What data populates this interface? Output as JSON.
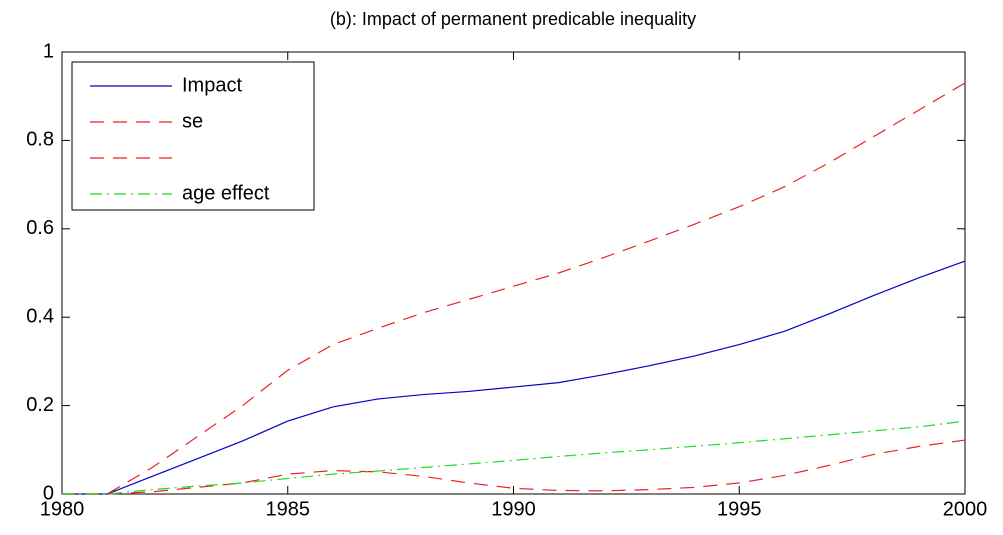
{
  "chart_data": {
    "type": "line",
    "title": "(b): Impact of permanent predicable inequality",
    "x": [
      1980,
      1981,
      1982,
      1983,
      1984,
      1985,
      1986,
      1987,
      1988,
      1989,
      1990,
      1991,
      1992,
      1993,
      1994,
      1995,
      1996,
      1997,
      1998,
      1999,
      2000
    ],
    "series": [
      {
        "name": "Impact",
        "color": "#0000cc",
        "style": "solid",
        "values": [
          0,
          0,
          0.04,
          0.08,
          0.12,
          0.165,
          0.197,
          0.215,
          0.225,
          0.232,
          0.242,
          0.252,
          0.27,
          0.29,
          0.312,
          0.338,
          0.368,
          0.408,
          0.45,
          0.49,
          0.527
        ]
      },
      {
        "name": "se",
        "color": "#ee2222",
        "style": "dashed",
        "values": [
          0,
          0,
          0.06,
          0.13,
          0.2,
          0.28,
          0.338,
          0.375,
          0.41,
          0.44,
          0.47,
          0.5,
          0.535,
          0.572,
          0.61,
          0.65,
          0.695,
          0.75,
          0.81,
          0.87,
          0.93
        ]
      },
      {
        "name": null,
        "color": "#ee2222",
        "style": "dashed",
        "values": [
          0,
          0,
          0.005,
          0.015,
          0.025,
          0.045,
          0.053,
          0.05,
          0.04,
          0.025,
          0.013,
          0.008,
          0.007,
          0.01,
          0.015,
          0.025,
          0.042,
          0.065,
          0.09,
          0.108,
          0.122
        ]
      },
      {
        "name": "age effect",
        "color": "#22dd22",
        "style": "dashdot",
        "values": [
          0,
          0,
          0.01,
          0.018,
          0.025,
          0.035,
          0.045,
          0.052,
          0.06,
          0.068,
          0.076,
          0.085,
          0.093,
          0.1,
          0.108,
          0.116,
          0.125,
          0.134,
          0.143,
          0.152,
          0.165
        ]
      }
    ],
    "xlim": [
      1980,
      2000
    ],
    "xticks": [
      1980,
      1985,
      1990,
      1995,
      2000
    ],
    "ylim": [
      0,
      1
    ],
    "yticks": [
      0,
      0.2,
      0.4,
      0.6,
      0.8,
      1
    ],
    "legend": "upper-left"
  }
}
